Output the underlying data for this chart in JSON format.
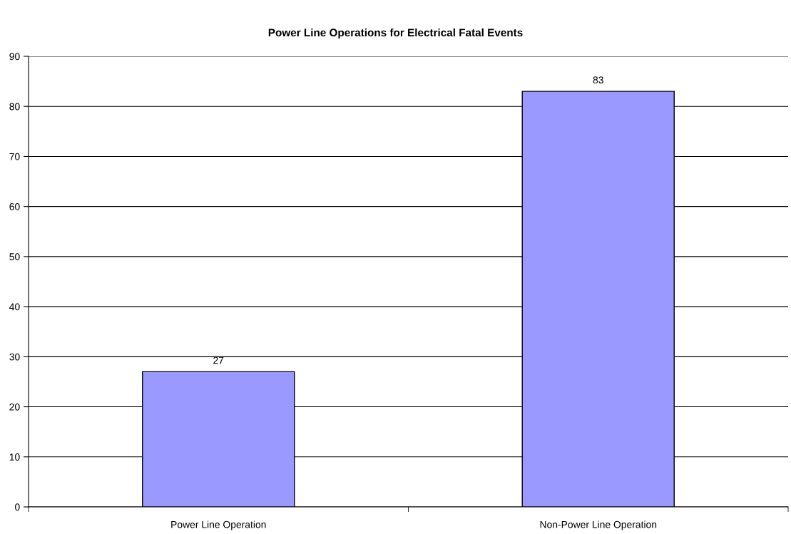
{
  "chart_data": {
    "type": "bar",
    "title": "Power Line Operations for Electrical Fatal Events",
    "categories": [
      "Power Line Operation",
      "Non-Power Line Operation"
    ],
    "values": [
      27,
      83
    ],
    "color": "#9999ff",
    "ylim": [
      0,
      90
    ],
    "yticks": [
      0,
      10,
      20,
      30,
      40,
      50,
      60,
      70,
      80,
      90
    ],
    "grid": "y",
    "data_labels": true,
    "legend": false
  }
}
